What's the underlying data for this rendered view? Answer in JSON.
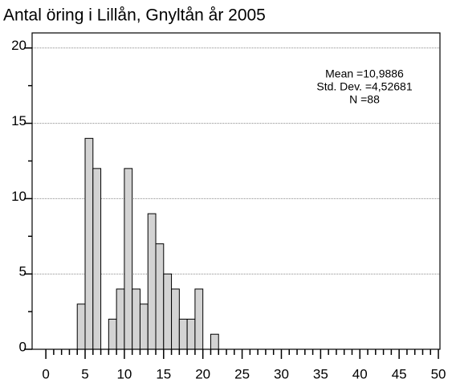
{
  "chart_data": {
    "type": "histogram",
    "title": "Antal öring i Lillån, Gnyltån år 2005",
    "bins": [
      4,
      5,
      6,
      7,
      8,
      9,
      10,
      11,
      12,
      13,
      14,
      15,
      16,
      17,
      18,
      19,
      20,
      21,
      22
    ],
    "values": [
      3,
      14,
      12,
      0,
      2,
      4,
      12,
      4,
      3,
      9,
      7,
      5,
      4,
      2,
      2,
      4,
      0,
      1
    ],
    "color": "#d3d3d3",
    "xlim": [
      -1.75,
      50.2
    ],
    "ylim": [
      0,
      21
    ],
    "xticks": [
      0,
      5,
      10,
      15,
      20,
      25,
      30,
      35,
      40,
      45,
      50
    ],
    "xminorticks": [
      1,
      2,
      3,
      4,
      6,
      7,
      8,
      9,
      11,
      12,
      13,
      14,
      16,
      17,
      18,
      19,
      21,
      22,
      23,
      24,
      26,
      27,
      28,
      29,
      31,
      32,
      33,
      34,
      36,
      37,
      38,
      39,
      41,
      42,
      43,
      44,
      46,
      47,
      48,
      49
    ],
    "yticks": [
      0,
      5,
      10,
      15,
      20
    ],
    "yminorticks": [
      2.5,
      7.5,
      12.5,
      17.5
    ],
    "grid": true,
    "annotations": [
      "Mean =10,9886",
      "Std. Dev. =4,52681",
      "N =88"
    ]
  }
}
